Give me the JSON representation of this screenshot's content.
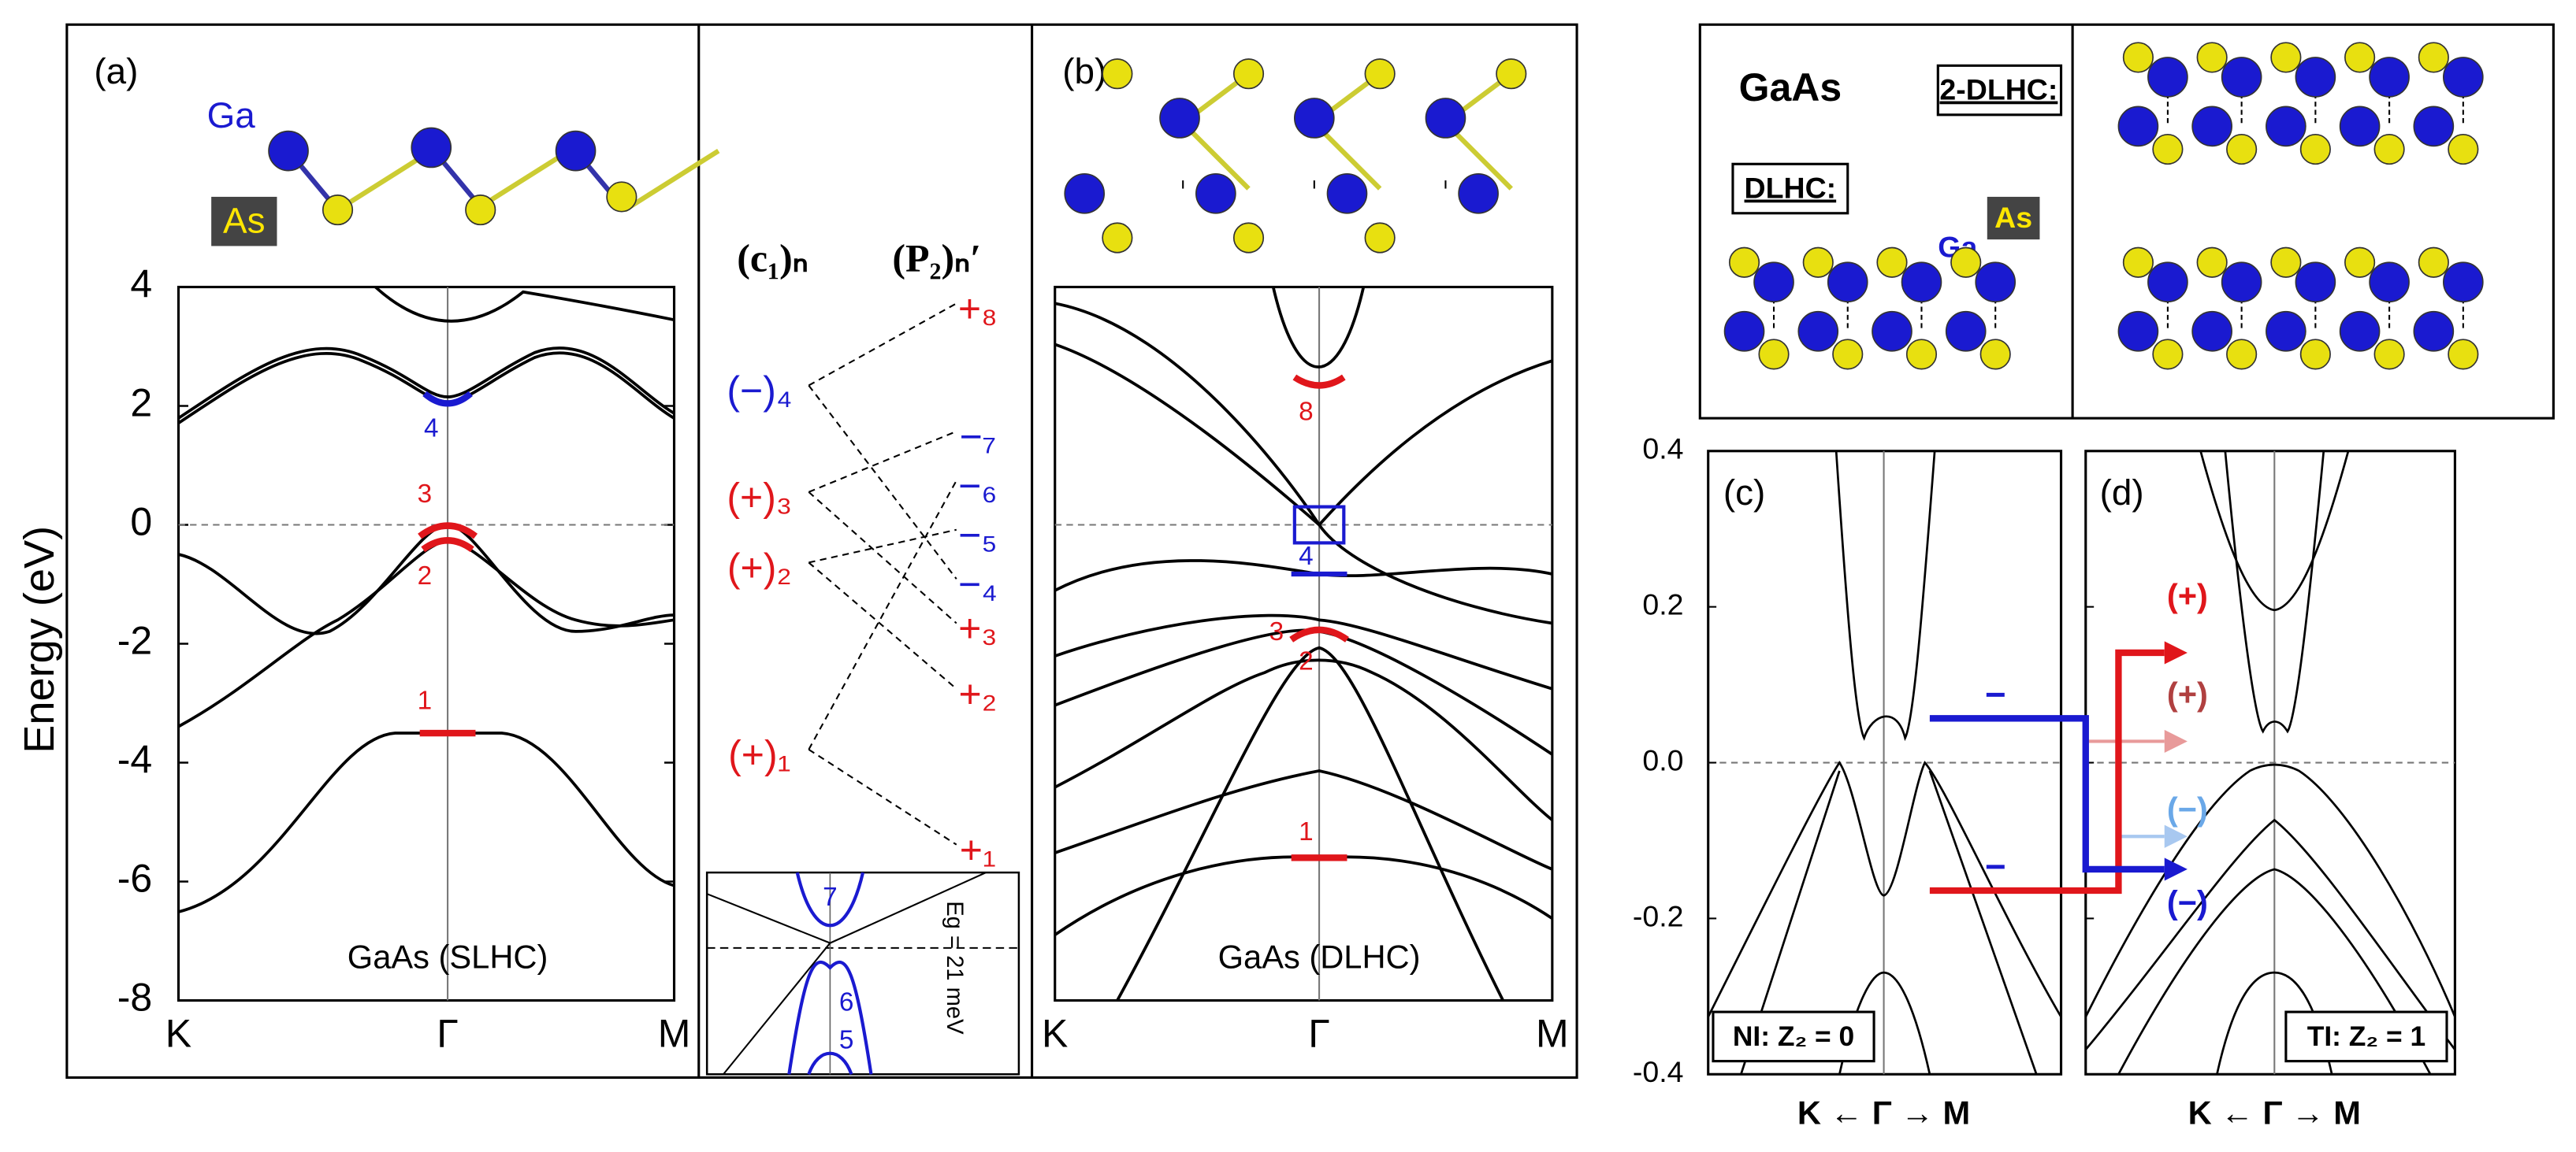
{
  "figure": {
    "panel_a": {
      "label": "(a)",
      "atoms": [
        "Ga",
        "As"
      ],
      "bands": [
        "4",
        "3",
        "2",
        "1"
      ],
      "caption": "GaAs (SLHC)",
      "ylabel": "Energy (eV)",
      "ylim": [
        -8,
        4
      ],
      "yticks": [
        4,
        2,
        0,
        -2,
        -4,
        -6,
        -8
      ],
      "xticks": [
        "K",
        "Γ",
        "M"
      ]
    },
    "parity_table": {
      "headers": [
        "(c₁)ₙ",
        "(P₂)ₙ′"
      ],
      "left": [
        "(−)₄",
        "(+)₃",
        "(+)₂",
        "(+)₁"
      ],
      "right": [
        "+₈",
        "−₇",
        "−₆",
        "−₅",
        "−₄",
        "+₃",
        "+₂",
        "+₁"
      ],
      "inset": {
        "bands": [
          "7",
          "6",
          "5"
        ],
        "gap": "Eg = 21 meV"
      }
    },
    "panel_b": {
      "label": "(b)",
      "bands": [
        "8",
        "4",
        "3",
        "2",
        "1"
      ],
      "caption": "GaAs (DLHC)",
      "xticks": [
        "K",
        "Γ",
        "M"
      ]
    },
    "structures": {
      "title": "GaAs",
      "dlhc": "DLHC:",
      "two_dlhc": "2-DLHC:",
      "atoms": [
        "Ga",
        "As"
      ]
    },
    "panel_c": {
      "label": "(c)",
      "ylim": [
        -0.4,
        0.4
      ],
      "yticks": [
        0.4,
        0.2,
        {
          "value": 0,
          "label": "0.0"
        },
        -0.2,
        -0.4
      ],
      "caption": "NI: Z₂ = 0",
      "xaxis": "K ← Γ → M",
      "arrow_labels": [
        "−",
        "−"
      ]
    },
    "panel_d": {
      "label": "(d)",
      "caption": "TI: Z₂ = 1",
      "xaxis": "K ← Γ → M",
      "parity_labels": [
        "(+)",
        "(+)",
        "(−)",
        "(−)"
      ]
    }
  }
}
